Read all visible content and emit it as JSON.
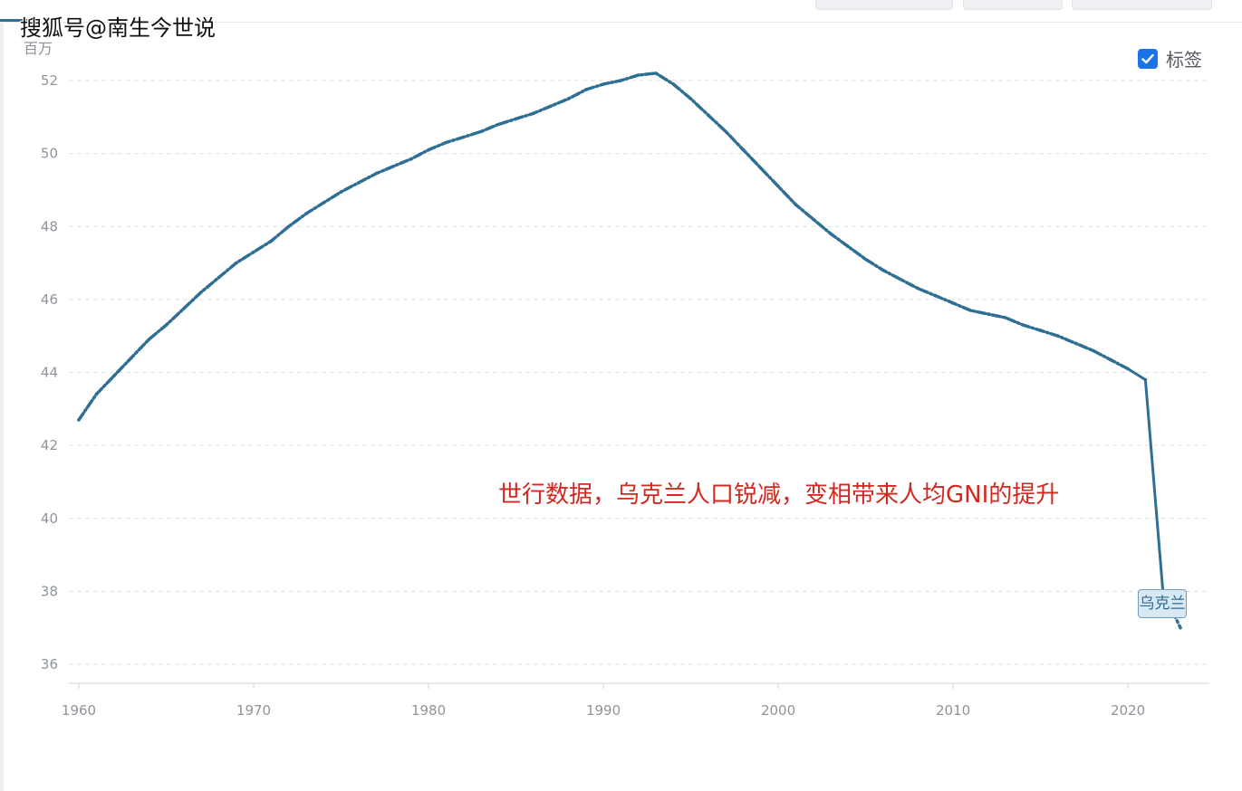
{
  "watermark": "搜狐号@南生今世说",
  "unit_label": "百万",
  "label_toggle": {
    "text": "标签",
    "checked": true
  },
  "annotation_text": "世行数据，乌克兰人口锐减，变相带来人均GNI的提升",
  "colors": {
    "series": "#2f6f94",
    "annotation": "#d2281f",
    "grid": "#dcdfe4",
    "tick": "#8f949b",
    "checkbox": "#1a73e8"
  },
  "chart_data": {
    "type": "line",
    "title": "",
    "xlabel": "",
    "ylabel": "百万",
    "xlim": [
      1960,
      2023
    ],
    "ylim": [
      35.5,
      53
    ],
    "x_ticks": [
      1960,
      1970,
      1980,
      1990,
      2000,
      2010,
      2020
    ],
    "y_ticks": [
      36,
      38,
      40,
      42,
      44,
      46,
      48,
      50,
      52
    ],
    "grid": true,
    "legend": "none",
    "series": [
      {
        "name": "乌克兰",
        "line_style": "dotted",
        "x": [
          1960,
          1961,
          1962,
          1963,
          1964,
          1965,
          1966,
          1967,
          1968,
          1969,
          1970,
          1971,
          1972,
          1973,
          1974,
          1975,
          1976,
          1977,
          1978,
          1979,
          1980,
          1981,
          1982,
          1983,
          1984,
          1985,
          1986,
          1987,
          1988,
          1989,
          1990,
          1991,
          1992,
          1993,
          1994,
          1995,
          1996,
          1997,
          1998,
          1999,
          2000,
          2001,
          2002,
          2003,
          2004,
          2005,
          2006,
          2007,
          2008,
          2009,
          2010,
          2011,
          2012,
          2013,
          2014,
          2015,
          2016,
          2017,
          2018,
          2019,
          2020,
          2021,
          2022,
          2023
        ],
        "values": [
          42.7,
          43.4,
          43.9,
          44.4,
          44.9,
          45.3,
          45.75,
          46.2,
          46.6,
          47.0,
          47.3,
          47.6,
          48.0,
          48.35,
          48.65,
          48.95,
          49.2,
          49.45,
          49.65,
          49.85,
          50.1,
          50.3,
          50.45,
          50.6,
          50.8,
          50.95,
          51.1,
          51.3,
          51.5,
          51.75,
          51.9,
          52.0,
          52.15,
          52.2,
          51.9,
          51.5,
          51.05,
          50.6,
          50.1,
          49.6,
          49.1,
          48.6,
          48.2,
          47.8,
          47.45,
          47.1,
          46.8,
          46.55,
          46.3,
          46.1,
          45.9,
          45.7,
          45.6,
          45.5,
          45.3,
          45.15,
          45.0,
          44.8,
          44.6,
          44.35,
          44.1,
          43.8,
          38.0,
          37.0
        ]
      }
    ]
  }
}
